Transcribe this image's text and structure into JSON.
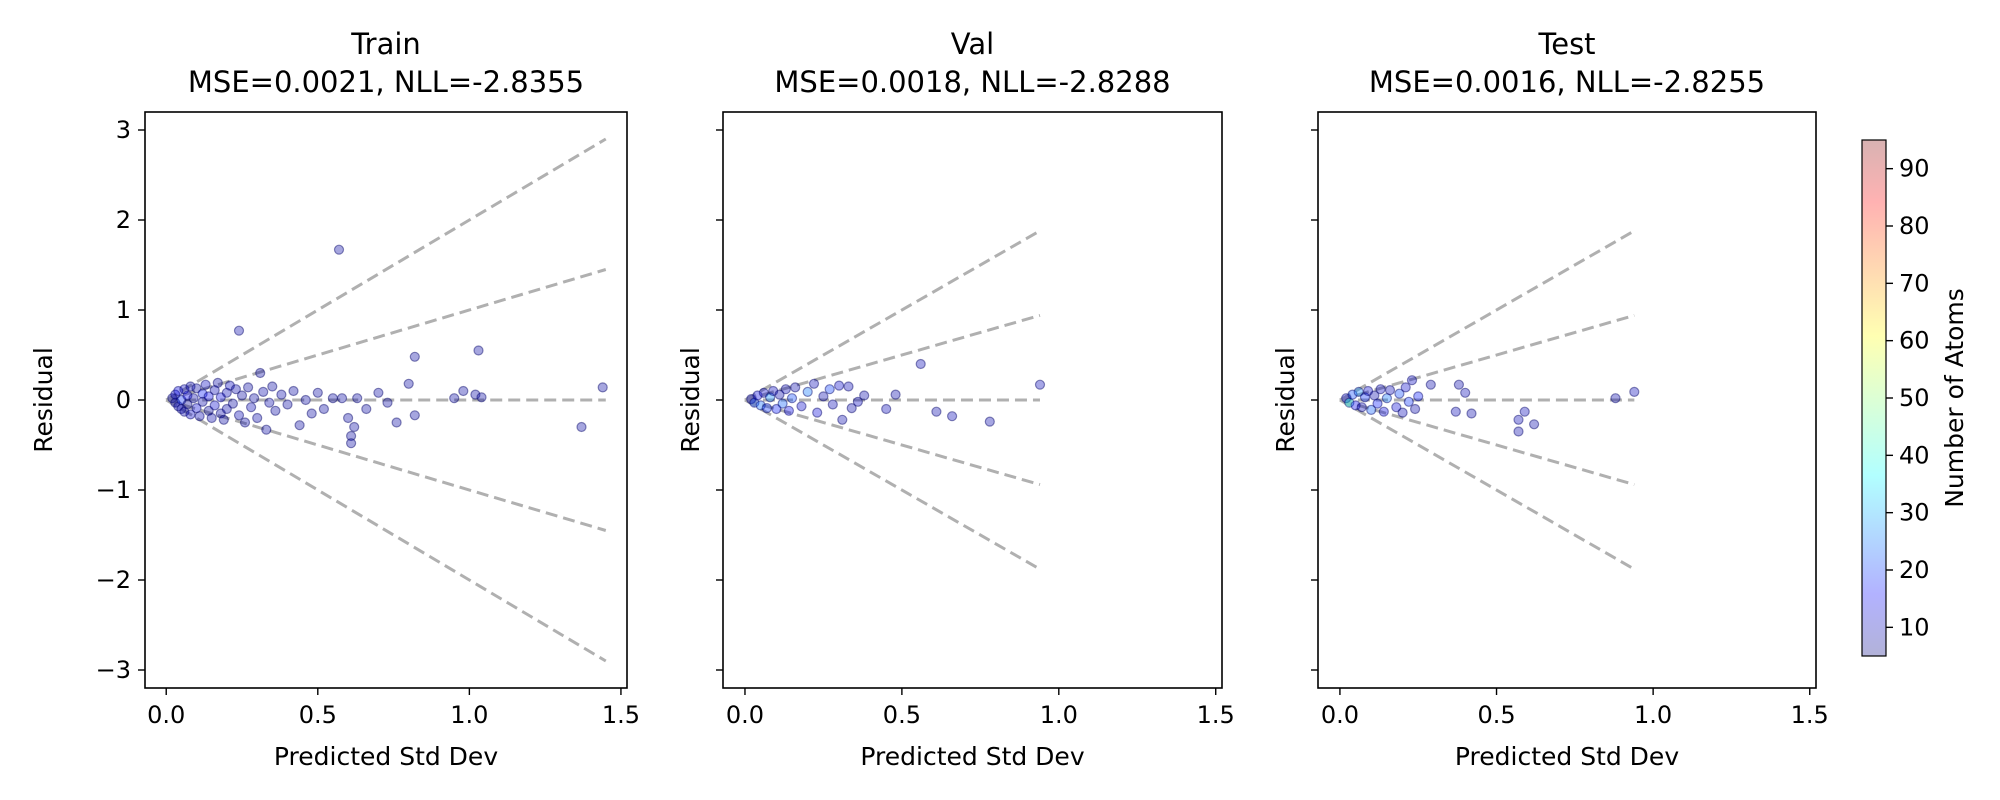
{
  "chart_data": [
    {
      "type": "scatter",
      "title": "Train",
      "subtitle": "MSE=0.0021, NLL=-2.8355",
      "xlabel": "Predicted Std Dev",
      "ylabel": "Residual",
      "xlim": [
        -0.07,
        1.52
      ],
      "ylim": [
        -3.2,
        3.2
      ],
      "xticks": [
        0.0,
        0.5,
        1.0,
        1.5
      ],
      "xtick_labels": [
        "0.0",
        "0.5",
        "1.0",
        "1.5"
      ],
      "yticks": [
        -3,
        -2,
        -1,
        0,
        1,
        2,
        3
      ],
      "ytick_labels": [
        "−3",
        "−2",
        "−1",
        "0",
        "1",
        "2",
        "3"
      ],
      "guide_lines": {
        "x_max": 1.45,
        "slopes": [
          -2,
          -1,
          0,
          1,
          2
        ]
      },
      "points": [
        {
          "x": 0.02,
          "y": 0.02,
          "c": 8
        },
        {
          "x": 0.03,
          "y": -0.03,
          "c": 9
        },
        {
          "x": 0.03,
          "y": 0.06,
          "c": 12
        },
        {
          "x": 0.04,
          "y": -0.07,
          "c": 10
        },
        {
          "x": 0.04,
          "y": 0.1,
          "c": 14
        },
        {
          "x": 0.05,
          "y": -0.1,
          "c": 8
        },
        {
          "x": 0.05,
          "y": 0.0,
          "c": 20
        },
        {
          "x": 0.06,
          "y": 0.12,
          "c": 11
        },
        {
          "x": 0.06,
          "y": -0.13,
          "c": 9
        },
        {
          "x": 0.07,
          "y": 0.05,
          "c": 16
        },
        {
          "x": 0.07,
          "y": -0.05,
          "c": 7
        },
        {
          "x": 0.08,
          "y": 0.15,
          "c": 10
        },
        {
          "x": 0.08,
          "y": -0.16,
          "c": 12
        },
        {
          "x": 0.09,
          "y": 0.02,
          "c": 9
        },
        {
          "x": 0.1,
          "y": -0.09,
          "c": 13
        },
        {
          "x": 0.1,
          "y": 0.13,
          "c": 8
        },
        {
          "x": 0.11,
          "y": -0.18,
          "c": 10
        },
        {
          "x": 0.12,
          "y": 0.07,
          "c": 18
        },
        {
          "x": 0.12,
          "y": -0.02,
          "c": 9
        },
        {
          "x": 0.13,
          "y": 0.17,
          "c": 11
        },
        {
          "x": 0.14,
          "y": -0.12,
          "c": 8
        },
        {
          "x": 0.14,
          "y": 0.04,
          "c": 15
        },
        {
          "x": 0.15,
          "y": -0.2,
          "c": 9
        },
        {
          "x": 0.16,
          "y": 0.11,
          "c": 10
        },
        {
          "x": 0.16,
          "y": -0.06,
          "c": 12
        },
        {
          "x": 0.17,
          "y": 0.19,
          "c": 8
        },
        {
          "x": 0.18,
          "y": -0.15,
          "c": 9
        },
        {
          "x": 0.18,
          "y": 0.03,
          "c": 14
        },
        {
          "x": 0.19,
          "y": -0.22,
          "c": 8
        },
        {
          "x": 0.2,
          "y": 0.08,
          "c": 10
        },
        {
          "x": 0.2,
          "y": -0.1,
          "c": 9
        },
        {
          "x": 0.21,
          "y": 0.16,
          "c": 11
        },
        {
          "x": 0.22,
          "y": -0.04,
          "c": 8
        },
        {
          "x": 0.23,
          "y": 0.12,
          "c": 9
        },
        {
          "x": 0.24,
          "y": -0.17,
          "c": 10
        },
        {
          "x": 0.24,
          "y": 0.77,
          "c": 9
        },
        {
          "x": 0.25,
          "y": 0.05,
          "c": 8
        },
        {
          "x": 0.26,
          "y": -0.25,
          "c": 9
        },
        {
          "x": 0.27,
          "y": 0.14,
          "c": 8
        },
        {
          "x": 0.28,
          "y": -0.08,
          "c": 10
        },
        {
          "x": 0.29,
          "y": 0.02,
          "c": 8
        },
        {
          "x": 0.3,
          "y": -0.2,
          "c": 9
        },
        {
          "x": 0.31,
          "y": 0.3,
          "c": 8
        },
        {
          "x": 0.32,
          "y": 0.09,
          "c": 9
        },
        {
          "x": 0.33,
          "y": -0.33,
          "c": 8
        },
        {
          "x": 0.34,
          "y": -0.03,
          "c": 9
        },
        {
          "x": 0.35,
          "y": 0.15,
          "c": 8
        },
        {
          "x": 0.36,
          "y": -0.12,
          "c": 8
        },
        {
          "x": 0.38,
          "y": 0.06,
          "c": 9
        },
        {
          "x": 0.4,
          "y": -0.05,
          "c": 8
        },
        {
          "x": 0.42,
          "y": 0.1,
          "c": 8
        },
        {
          "x": 0.44,
          "y": -0.28,
          "c": 8
        },
        {
          "x": 0.46,
          "y": 0.0,
          "c": 8
        },
        {
          "x": 0.48,
          "y": -0.15,
          "c": 8
        },
        {
          "x": 0.5,
          "y": 0.08,
          "c": 8
        },
        {
          "x": 0.52,
          "y": -0.1,
          "c": 8
        },
        {
          "x": 0.55,
          "y": 0.02,
          "c": 8
        },
        {
          "x": 0.57,
          "y": 1.67,
          "c": 8
        },
        {
          "x": 0.58,
          "y": 0.02,
          "c": 8
        },
        {
          "x": 0.6,
          "y": -0.2,
          "c": 8
        },
        {
          "x": 0.61,
          "y": -0.4,
          "c": 8
        },
        {
          "x": 0.61,
          "y": -0.48,
          "c": 8
        },
        {
          "x": 0.62,
          "y": -0.3,
          "c": 8
        },
        {
          "x": 0.63,
          "y": 0.02,
          "c": 8
        },
        {
          "x": 0.66,
          "y": -0.1,
          "c": 8
        },
        {
          "x": 0.7,
          "y": 0.08,
          "c": 8
        },
        {
          "x": 0.73,
          "y": -0.03,
          "c": 8
        },
        {
          "x": 0.76,
          "y": -0.25,
          "c": 8
        },
        {
          "x": 0.8,
          "y": 0.18,
          "c": 8
        },
        {
          "x": 0.82,
          "y": 0.48,
          "c": 8
        },
        {
          "x": 0.82,
          "y": -0.17,
          "c": 8
        },
        {
          "x": 0.95,
          "y": 0.02,
          "c": 8
        },
        {
          "x": 0.98,
          "y": 0.1,
          "c": 8
        },
        {
          "x": 1.02,
          "y": 0.06,
          "c": 8
        },
        {
          "x": 1.03,
          "y": 0.55,
          "c": 8
        },
        {
          "x": 1.04,
          "y": 0.03,
          "c": 8
        },
        {
          "x": 1.37,
          "y": -0.3,
          "c": 8
        },
        {
          "x": 1.44,
          "y": 0.14,
          "c": 8
        }
      ]
    },
    {
      "type": "scatter",
      "title": "Val",
      "subtitle": "MSE=0.0018, NLL=-2.8288",
      "xlabel": "Predicted Std Dev",
      "ylabel": "Residual",
      "xlim": [
        -0.07,
        1.52
      ],
      "ylim": [
        -3.2,
        3.2
      ],
      "xticks": [
        0.0,
        0.5,
        1.0,
        1.5
      ],
      "xtick_labels": [
        "0.0",
        "0.5",
        "1.0",
        "1.5"
      ],
      "yticks": [
        -3,
        -2,
        -1,
        0,
        1,
        2,
        3
      ],
      "guide_lines": {
        "x_max": 0.94,
        "slopes": [
          -2,
          -1,
          0,
          1,
          2
        ]
      },
      "points": [
        {
          "x": 0.02,
          "y": 0.01,
          "c": 10
        },
        {
          "x": 0.03,
          "y": -0.03,
          "c": 22
        },
        {
          "x": 0.04,
          "y": 0.05,
          "c": 14
        },
        {
          "x": 0.05,
          "y": -0.06,
          "c": 25
        },
        {
          "x": 0.06,
          "y": 0.08,
          "c": 12
        },
        {
          "x": 0.07,
          "y": -0.09,
          "c": 20
        },
        {
          "x": 0.08,
          "y": 0.03,
          "c": 28
        },
        {
          "x": 0.09,
          "y": 0.1,
          "c": 11
        },
        {
          "x": 0.1,
          "y": -0.1,
          "c": 18
        },
        {
          "x": 0.11,
          "y": 0.06,
          "c": 9
        },
        {
          "x": 0.12,
          "y": -0.04,
          "c": 24
        },
        {
          "x": 0.13,
          "y": 0.12,
          "c": 10
        },
        {
          "x": 0.14,
          "y": -0.12,
          "c": 15
        },
        {
          "x": 0.15,
          "y": 0.02,
          "c": 22
        },
        {
          "x": 0.16,
          "y": 0.14,
          "c": 9
        },
        {
          "x": 0.18,
          "y": -0.07,
          "c": 12
        },
        {
          "x": 0.2,
          "y": 0.09,
          "c": 26
        },
        {
          "x": 0.22,
          "y": 0.18,
          "c": 10
        },
        {
          "x": 0.23,
          "y": -0.14,
          "c": 13
        },
        {
          "x": 0.25,
          "y": 0.04,
          "c": 9
        },
        {
          "x": 0.27,
          "y": 0.12,
          "c": 21
        },
        {
          "x": 0.28,
          "y": -0.05,
          "c": 10
        },
        {
          "x": 0.3,
          "y": 0.16,
          "c": 12
        },
        {
          "x": 0.31,
          "y": -0.22,
          "c": 9
        },
        {
          "x": 0.33,
          "y": 0.15,
          "c": 10
        },
        {
          "x": 0.34,
          "y": -0.09,
          "c": 9
        },
        {
          "x": 0.36,
          "y": -0.02,
          "c": 11
        },
        {
          "x": 0.38,
          "y": 0.05,
          "c": 9
        },
        {
          "x": 0.45,
          "y": -0.1,
          "c": 10
        },
        {
          "x": 0.48,
          "y": 0.06,
          "c": 9
        },
        {
          "x": 0.56,
          "y": 0.4,
          "c": 10
        },
        {
          "x": 0.61,
          "y": -0.13,
          "c": 9
        },
        {
          "x": 0.66,
          "y": -0.18,
          "c": 10
        },
        {
          "x": 0.78,
          "y": -0.24,
          "c": 9
        },
        {
          "x": 0.94,
          "y": 0.17,
          "c": 10
        }
      ]
    },
    {
      "type": "scatter",
      "title": "Test",
      "subtitle": "MSE=0.0016, NLL=-2.8255",
      "xlabel": "Predicted Std Dev",
      "ylabel": "Residual",
      "xlim": [
        -0.07,
        1.52
      ],
      "ylim": [
        -3.2,
        3.2
      ],
      "xticks": [
        0.0,
        0.5,
        1.0,
        1.5
      ],
      "xtick_labels": [
        "0.0",
        "0.5",
        "1.0",
        "1.5"
      ],
      "yticks": [
        -3,
        -2,
        -1,
        0,
        1,
        2,
        3
      ],
      "guide_lines": {
        "x_max": 0.94,
        "slopes": [
          -2,
          -1,
          0,
          1,
          2
        ]
      },
      "points": [
        {
          "x": 0.02,
          "y": 0.02,
          "c": 12
        },
        {
          "x": 0.03,
          "y": -0.03,
          "c": 40
        },
        {
          "x": 0.04,
          "y": 0.06,
          "c": 22
        },
        {
          "x": 0.05,
          "y": -0.06,
          "c": 15
        },
        {
          "x": 0.06,
          "y": 0.09,
          "c": 28
        },
        {
          "x": 0.07,
          "y": -0.08,
          "c": 10
        },
        {
          "x": 0.08,
          "y": 0.03,
          "c": 20
        },
        {
          "x": 0.09,
          "y": 0.1,
          "c": 12
        },
        {
          "x": 0.1,
          "y": -0.11,
          "c": 24
        },
        {
          "x": 0.11,
          "y": 0.05,
          "c": 9
        },
        {
          "x": 0.12,
          "y": -0.04,
          "c": 18
        },
        {
          "x": 0.13,
          "y": 0.12,
          "c": 11
        },
        {
          "x": 0.14,
          "y": -0.13,
          "c": 14
        },
        {
          "x": 0.15,
          "y": 0.02,
          "c": 26
        },
        {
          "x": 0.16,
          "y": 0.11,
          "c": 10
        },
        {
          "x": 0.18,
          "y": -0.08,
          "c": 13
        },
        {
          "x": 0.19,
          "y": 0.07,
          "c": 22
        },
        {
          "x": 0.2,
          "y": -0.14,
          "c": 10
        },
        {
          "x": 0.21,
          "y": 0.14,
          "c": 12
        },
        {
          "x": 0.22,
          "y": -0.02,
          "c": 20
        },
        {
          "x": 0.23,
          "y": 0.22,
          "c": 11
        },
        {
          "x": 0.24,
          "y": -0.1,
          "c": 9
        },
        {
          "x": 0.25,
          "y": 0.04,
          "c": 18
        },
        {
          "x": 0.29,
          "y": 0.17,
          "c": 9
        },
        {
          "x": 0.37,
          "y": -0.13,
          "c": 10
        },
        {
          "x": 0.38,
          "y": 0.17,
          "c": 9
        },
        {
          "x": 0.4,
          "y": 0.08,
          "c": 10
        },
        {
          "x": 0.42,
          "y": -0.15,
          "c": 9
        },
        {
          "x": 0.57,
          "y": -0.22,
          "c": 10
        },
        {
          "x": 0.57,
          "y": -0.35,
          "c": 9
        },
        {
          "x": 0.59,
          "y": -0.13,
          "c": 10
        },
        {
          "x": 0.62,
          "y": -0.27,
          "c": 9
        },
        {
          "x": 0.88,
          "y": 0.02,
          "c": 9
        },
        {
          "x": 0.94,
          "y": 0.09,
          "c": 10
        }
      ]
    }
  ],
  "colorbar": {
    "label": "Number of Atoms",
    "range": [
      5,
      95
    ],
    "ticks": [
      10,
      20,
      30,
      40,
      50,
      60,
      70,
      80,
      90
    ],
    "colormap": "jet",
    "alpha": 0.3
  },
  "colors": {
    "guide_line": "#b0b0b0",
    "point_edge": "#000066"
  }
}
